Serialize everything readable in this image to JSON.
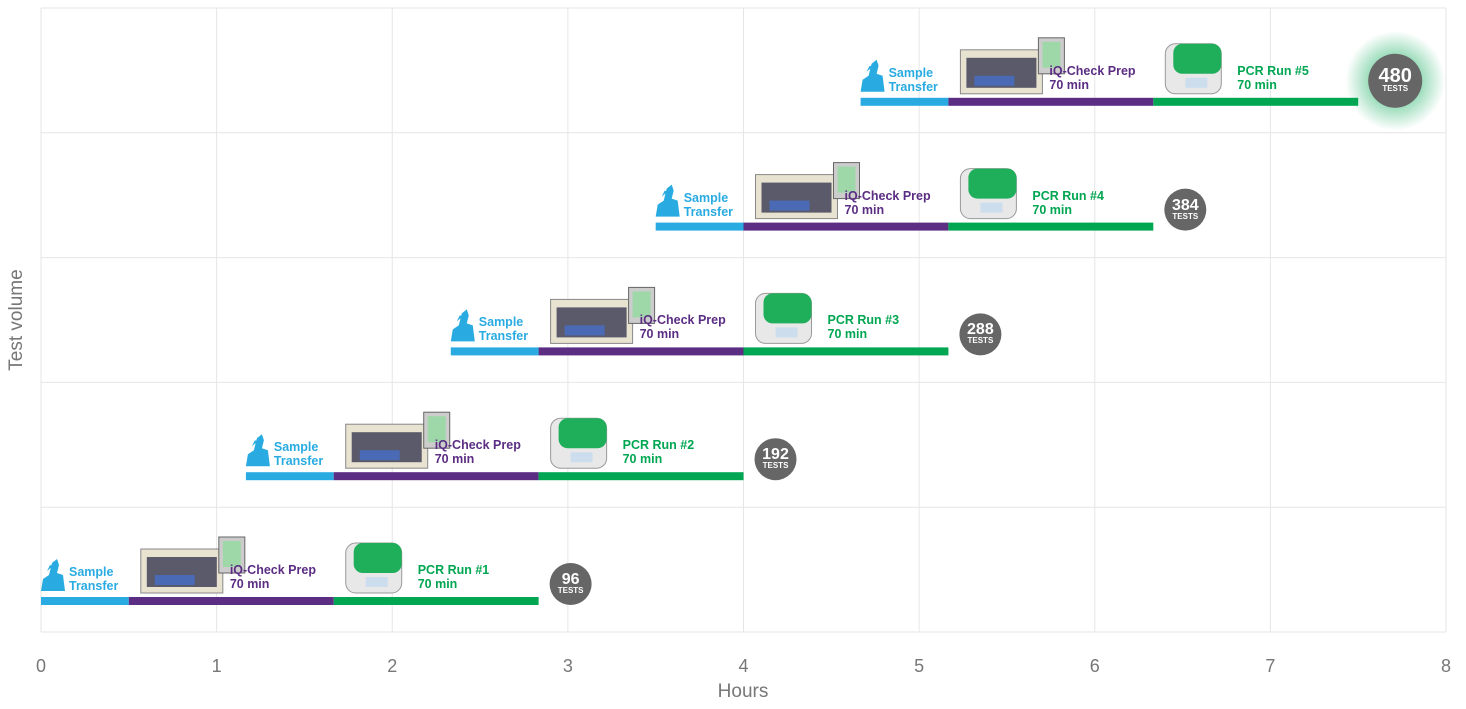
{
  "chart_data": {
    "type": "timeline",
    "x_label": "Hours",
    "y_label": "Test volume",
    "xlim": [
      0,
      8
    ],
    "xticks": [
      0,
      1,
      2,
      3,
      4,
      5,
      6,
      7,
      8
    ],
    "grid": true,
    "rows": [
      {
        "start": 0,
        "tests": 96,
        "tests_unit": "TESTS",
        "segments": [
          {
            "name": "Sample Transfer",
            "color": "#29abe2",
            "duration": 0.5
          },
          {
            "name": "iQ-Check Prep",
            "duration_label": "70 min",
            "color": "#5b2d83",
            "duration": 1.1667
          },
          {
            "name": "PCR Run #1",
            "duration_label": "70 min",
            "color": "#00a651",
            "duration": 1.1667
          }
        ]
      },
      {
        "start": 1.1667,
        "tests": 192,
        "tests_unit": "TESTS",
        "segments": [
          {
            "name": "Sample Transfer",
            "color": "#29abe2",
            "duration": 0.5
          },
          {
            "name": "iQ-Check Prep",
            "duration_label": "70 min",
            "color": "#5b2d83",
            "duration": 1.1667
          },
          {
            "name": "PCR Run #2",
            "duration_label": "70 min",
            "color": "#00a651",
            "duration": 1.1667
          }
        ]
      },
      {
        "start": 2.3333,
        "tests": 288,
        "tests_unit": "TESTS",
        "segments": [
          {
            "name": "Sample Transfer",
            "color": "#29abe2",
            "duration": 0.5
          },
          {
            "name": "iQ-Check Prep",
            "duration_label": "70 min",
            "color": "#5b2d83",
            "duration": 1.1667
          },
          {
            "name": "PCR Run #3",
            "duration_label": "70 min",
            "color": "#00a651",
            "duration": 1.1667
          }
        ]
      },
      {
        "start": 3.5,
        "tests": 384,
        "tests_unit": "TESTS",
        "segments": [
          {
            "name": "Sample Transfer",
            "color": "#29abe2",
            "duration": 0.5
          },
          {
            "name": "iQ-Check Prep",
            "duration_label": "70 min",
            "color": "#5b2d83",
            "duration": 1.1667
          },
          {
            "name": "PCR Run #4",
            "duration_label": "70 min",
            "color": "#00a651",
            "duration": 1.1667
          }
        ]
      },
      {
        "start": 4.6667,
        "tests": 480,
        "tests_unit": "TESTS",
        "segments": [
          {
            "name": "Sample Transfer",
            "color": "#29abe2",
            "duration": 0.5
          },
          {
            "name": "iQ-Check Prep",
            "duration_label": "70 min",
            "color": "#5b2d83",
            "duration": 1.1667
          },
          {
            "name": "PCR Run #5",
            "duration_label": "70 min",
            "color": "#00a651",
            "duration": 1.1667
          }
        ]
      }
    ]
  }
}
